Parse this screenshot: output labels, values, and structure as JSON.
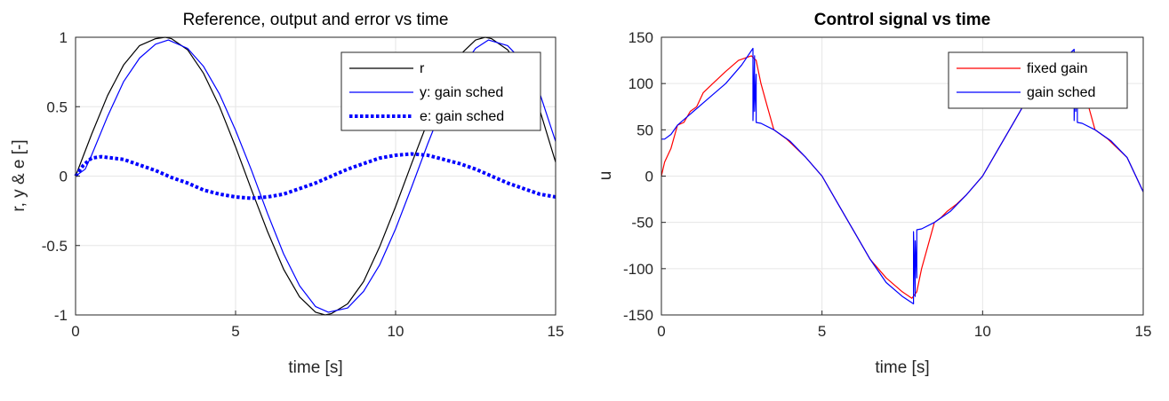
{
  "chart_data": [
    {
      "type": "line",
      "title": "Reference, output and error vs time",
      "xlabel": "time [s]",
      "ylabel": "r, y & e [-]",
      "xlim": [
        0,
        15
      ],
      "ylim": [
        -1,
        1
      ],
      "xticks": [
        "0",
        "5",
        "10",
        "15"
      ],
      "yticks": [
        "1",
        "0.5",
        "0",
        "-0.5",
        "-1"
      ],
      "grid": true,
      "legend_position": "top-right",
      "series": [
        {
          "name": "r",
          "color": "#000000",
          "style": "solid",
          "x": [
            0,
            0.5,
            1,
            1.5,
            2,
            2.5,
            2.8,
            3,
            3.5,
            4,
            4.5,
            5,
            5.5,
            6,
            6.5,
            7,
            7.5,
            7.8,
            8,
            8.5,
            9,
            9.5,
            10,
            10.5,
            11,
            11.5,
            12,
            12.5,
            12.8,
            13,
            13.5,
            14,
            14.5,
            15
          ],
          "y": [
            0,
            0.3,
            0.58,
            0.8,
            0.94,
            0.99,
            1.0,
            0.99,
            0.91,
            0.74,
            0.5,
            0.21,
            -0.1,
            -0.4,
            -0.67,
            -0.87,
            -0.98,
            -1.0,
            -0.99,
            -0.92,
            -0.76,
            -0.51,
            -0.22,
            0.09,
            0.39,
            0.66,
            0.87,
            0.98,
            1.0,
            0.99,
            0.91,
            0.74,
            0.48,
            0.1
          ]
        },
        {
          "name": "y: gain sched",
          "color": "#0000ff",
          "style": "solid",
          "x": [
            0,
            0.3,
            0.5,
            1,
            1.5,
            2,
            2.5,
            2.9,
            3.5,
            4,
            4.5,
            5,
            5.5,
            6,
            6.5,
            7,
            7.5,
            7.9,
            8.5,
            9,
            9.5,
            10,
            10.5,
            11,
            11.5,
            12,
            12.5,
            12.9,
            13.5,
            14,
            14.5,
            15
          ],
          "y": [
            0,
            0.05,
            0.15,
            0.43,
            0.68,
            0.85,
            0.95,
            0.98,
            0.92,
            0.79,
            0.59,
            0.33,
            0.04,
            -0.27,
            -0.56,
            -0.79,
            -0.94,
            -0.98,
            -0.95,
            -0.83,
            -0.64,
            -0.38,
            -0.08,
            0.23,
            0.52,
            0.76,
            0.92,
            0.98,
            0.94,
            0.82,
            0.6,
            0.25
          ]
        },
        {
          "name": "e: gain sched",
          "color": "#0000ff",
          "style": "dotted",
          "x": [
            0,
            0.25,
            0.5,
            0.8,
            1.5,
            2,
            2.5,
            3,
            3.5,
            4,
            4.5,
            5,
            5.5,
            6,
            6.5,
            7,
            7.5,
            8,
            8.5,
            9,
            9.5,
            10,
            10.5,
            11,
            11.5,
            12,
            12.5,
            13,
            13.5,
            14,
            14.5,
            15
          ],
          "y": [
            0,
            0.08,
            0.13,
            0.14,
            0.12,
            0.08,
            0.04,
            -0.01,
            -0.05,
            -0.1,
            -0.13,
            -0.15,
            -0.16,
            -0.15,
            -0.13,
            -0.09,
            -0.05,
            0,
            0.05,
            0.09,
            0.13,
            0.15,
            0.16,
            0.15,
            0.12,
            0.09,
            0.05,
            0,
            -0.05,
            -0.09,
            -0.13,
            -0.15
          ]
        }
      ]
    },
    {
      "type": "line",
      "title": "Control signal vs time",
      "xlabel": "time [s]",
      "ylabel": "u",
      "xlim": [
        0,
        15
      ],
      "ylim": [
        -150,
        150
      ],
      "xticks": [
        "0",
        "5",
        "10",
        "15"
      ],
      "yticks": [
        "150",
        "100",
        "50",
        "0",
        "-50",
        "-100",
        "-150"
      ],
      "grid": true,
      "legend_position": "top-right",
      "series": [
        {
          "name": "fixed gain",
          "color": "#ff0000",
          "style": "solid",
          "x": [
            0,
            0.1,
            0.3,
            0.5,
            0.7,
            0.9,
            1.1,
            1.3,
            1.6,
            2,
            2.4,
            2.8,
            2.95,
            3.1,
            3.3,
            3.5,
            3.7,
            3.9,
            4.2,
            4.5,
            5,
            5.5,
            6,
            6.5,
            7,
            7.5,
            7.8,
            7.95,
            8.1,
            8.3,
            8.5,
            8.7,
            8.9,
            9.2,
            9.5,
            10,
            10.5,
            11,
            11.5,
            12,
            12.5,
            12.8,
            12.95,
            13.1,
            13.3,
            13.5,
            13.7,
            13.9,
            14.2,
            14.5,
            15
          ],
          "y": [
            0,
            15,
            30,
            55,
            58,
            70,
            75,
            90,
            100,
            113,
            125,
            130,
            125,
            100,
            75,
            50,
            45,
            40,
            30,
            20,
            0,
            -30,
            -60,
            -90,
            -110,
            -125,
            -132,
            -125,
            -100,
            -75,
            -50,
            -45,
            -38,
            -30,
            -20,
            0,
            30,
            60,
            90,
            110,
            125,
            132,
            125,
            100,
            75,
            50,
            45,
            40,
            30,
            20,
            -17
          ]
        },
        {
          "name": "gain sched",
          "color": "#0000ff",
          "style": "solid",
          "x": [
            0,
            0.1,
            0.3,
            0.5,
            1,
            1.5,
            2,
            2.5,
            2.85,
            2.85,
            2.9,
            2.9,
            2.95,
            2.95,
            3.1,
            3.5,
            4,
            4.5,
            5,
            5.5,
            6,
            6.5,
            7,
            7.5,
            7.85,
            7.85,
            7.9,
            7.9,
            7.95,
            7.95,
            8.1,
            8.5,
            9,
            9.5,
            10,
            10.5,
            11,
            11.5,
            12,
            12.5,
            12.85,
            12.85,
            12.9,
            12.9,
            12.95,
            12.95,
            13.1,
            13.5,
            14,
            14.5,
            15
          ],
          "y": [
            40,
            40,
            45,
            55,
            70,
            85,
            100,
            120,
            138,
            60,
            130,
            70,
            110,
            58,
            57,
            50,
            38,
            20,
            0,
            -30,
            -60,
            -90,
            -115,
            -130,
            -138,
            -60,
            -130,
            -70,
            -110,
            -58,
            -57,
            -50,
            -38,
            -20,
            0,
            30,
            60,
            90,
            110,
            125,
            137,
            60,
            130,
            70,
            110,
            58,
            57,
            50,
            38,
            20,
            -17
          ]
        }
      ]
    }
  ]
}
